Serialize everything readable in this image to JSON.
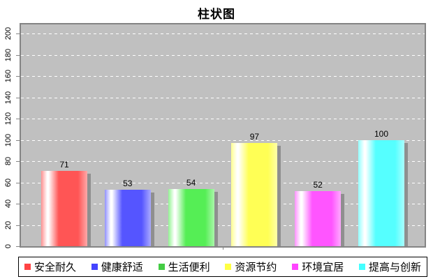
{
  "chart_data": {
    "type": "bar",
    "title": "柱状图",
    "categories": [
      "安全耐久",
      "健康舒适",
      "生活便利",
      "资源节约",
      "环境宜居",
      "提高与创新"
    ],
    "values": [
      71,
      53,
      54,
      97,
      52,
      100
    ],
    "bar_colors": [
      "#ff5555",
      "#5555ff",
      "#55ee55",
      "#ffff55",
      "#ff55ff",
      "#55ffff"
    ],
    "legend_swatch_colors": [
      "#ff4444",
      "#4444ff",
      "#44cc44",
      "#ffff44",
      "#ff44ff",
      "#44ffff"
    ],
    "xlabel": "",
    "ylabel": "",
    "ylim": [
      0,
      200
    ],
    "yticks": [
      0,
      20,
      40,
      60,
      80,
      100,
      120,
      140,
      160,
      180,
      200
    ],
    "grid": "horizontal-dashed-white",
    "plot_background": "#c0c0c0",
    "plot_border_color": "#848484",
    "legend_position": "bottom",
    "value_labels_shown": true
  }
}
